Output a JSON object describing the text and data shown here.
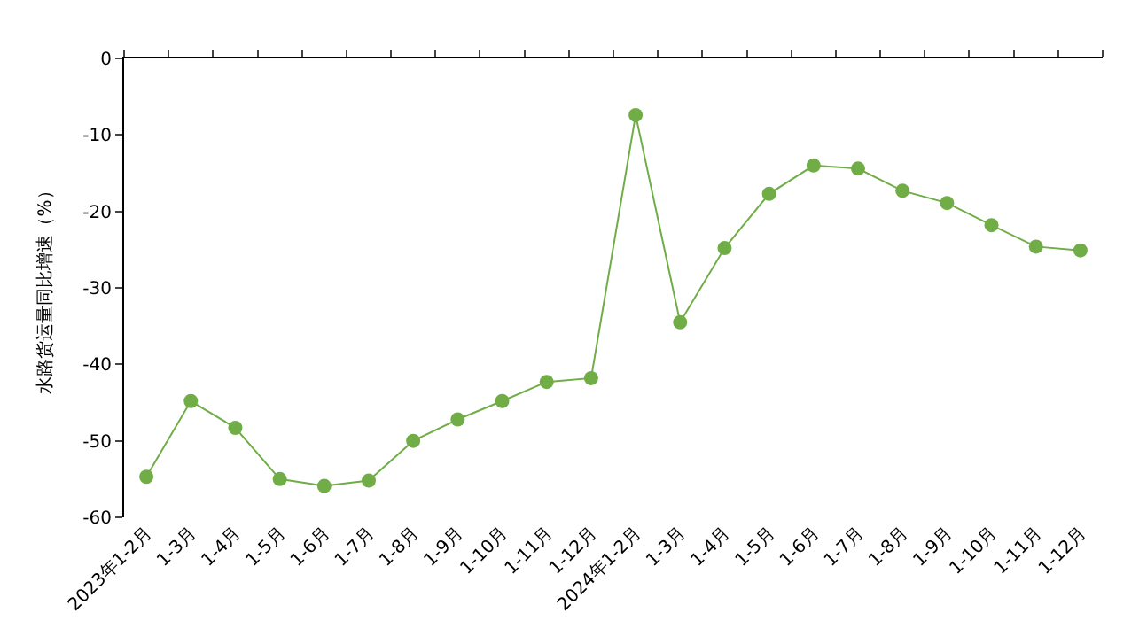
{
  "chart_data": {
    "type": "line",
    "ylabel": "水路货运量同比增速（%）",
    "categories": [
      "2023年1-2月",
      "1-3月",
      "1-4月",
      "1-5月",
      "1-6月",
      "1-7月",
      "1-8月",
      "1-9月",
      "1-10月",
      "1-11月",
      "1-12月",
      "2024年1-2月",
      "1-3月",
      "1-4月",
      "1-5月",
      "1-6月",
      "1-7月",
      "1-8月",
      "1-9月",
      "1-10月",
      "1-11月",
      "1-12月"
    ],
    "series": [
      {
        "color": "#70ad47",
        "values": [
          -54.7,
          -44.8,
          -48.3,
          -55.0,
          -55.9,
          -55.2,
          -50.0,
          -47.2,
          -44.8,
          -42.3,
          -41.8,
          -7.4,
          -34.5,
          -24.8,
          -17.7,
          -14.0,
          -14.4,
          -17.3,
          -18.9,
          -21.8,
          -24.6,
          -25.1
        ]
      }
    ],
    "ylim": [
      -60,
      0
    ],
    "yticks": [
      -60,
      -50,
      -40,
      -30,
      -20,
      -10,
      0
    ],
    "marker": "circle"
  }
}
